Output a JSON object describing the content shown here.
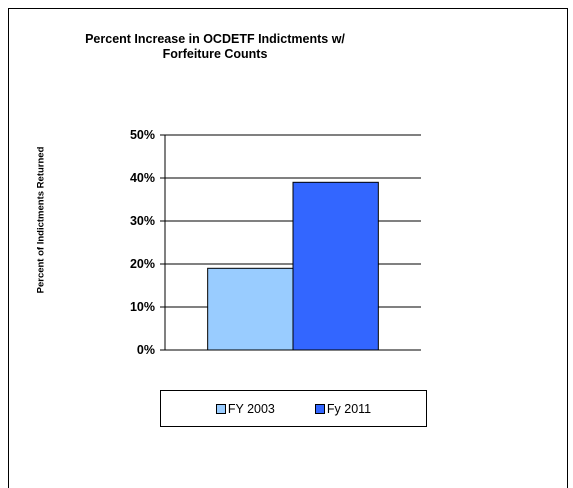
{
  "chart_data": {
    "type": "bar",
    "title": "Percent Increase in OCDETF Indictments w/ Forfeiture Counts",
    "xlabel": "",
    "ylabel": "Percent of Indictments Returned",
    "ylim": [
      0,
      50
    ],
    "ytick_labels": [
      "0%",
      "10%",
      "20%",
      "30%",
      "40%",
      "50%"
    ],
    "grid": true,
    "legend_position": "bottom",
    "categories": [
      ""
    ],
    "series": [
      {
        "name": "FY 2003",
        "values": [
          19
        ],
        "color": "#99ccff"
      },
      {
        "name": "Fy 2011",
        "values": [
          39
        ],
        "color": "#3366ff"
      }
    ]
  }
}
